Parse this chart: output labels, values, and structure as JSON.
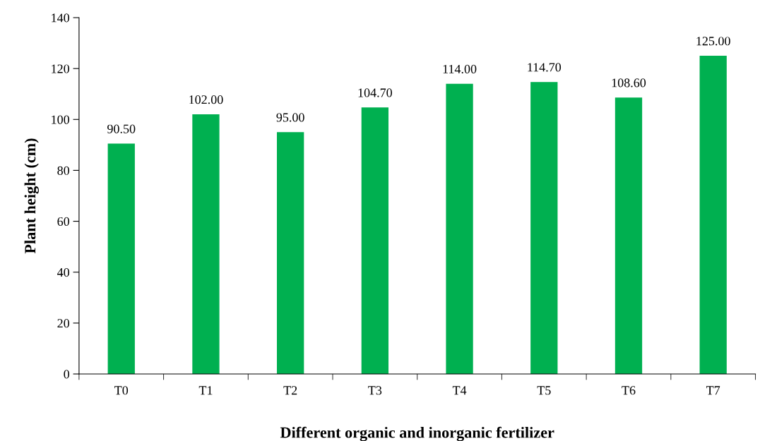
{
  "chart_data": {
    "type": "bar",
    "xlabel": "Different organic and inorganic fertilizer",
    "ylabel": "Plant height (cm)",
    "categories": [
      "T0",
      "T1",
      "T2",
      "T3",
      "T4",
      "T5",
      "T6",
      "T7"
    ],
    "values": [
      90.5,
      102.0,
      95.0,
      104.7,
      114.0,
      114.7,
      108.6,
      125.0
    ],
    "value_labels": [
      "90.50",
      "102.00",
      "95.00",
      "104.70",
      "114.00",
      "114.70",
      "108.60",
      "125.00"
    ],
    "color": "#00b050",
    "ylim": [
      0,
      140
    ],
    "yticks": [
      0,
      20,
      40,
      60,
      80,
      100,
      120,
      140
    ],
    "grid": false,
    "legend": false
  }
}
